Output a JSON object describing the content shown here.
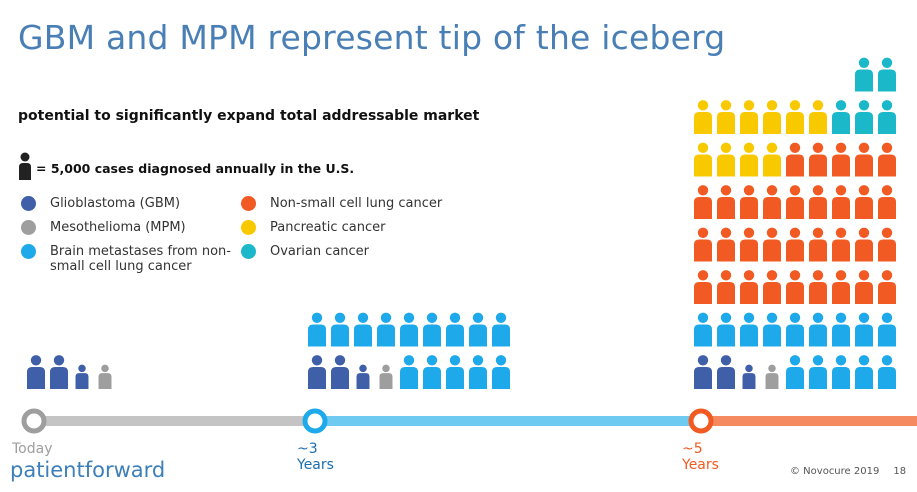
{
  "slide": {
    "title": "GBM and MPM represent tip of the iceberg",
    "subtitle": "potential to significantly expand total addressable market",
    "unit_label": "= 5,000 cases diagnosed annually in the U.S.",
    "brand": "patientforward",
    "copyright": "© Novocure 2019",
    "page_number": "18"
  },
  "legend": [
    {
      "label": "Glioblastoma (GBM)",
      "color": "#3f5fa8"
    },
    {
      "label": "Mesothelioma (MPM)",
      "color": "#9e9e9e"
    },
    {
      "label": "Brain metastases from non-small cell lung cancer",
      "color": "#1ea9ea"
    },
    {
      "label": "Non-small cell lung cancer",
      "color": "#f15a22"
    },
    {
      "label": "Pancreatic cancer",
      "color": "#f9c900"
    },
    {
      "label": "Ovarian cancer",
      "color": "#1bb8c9"
    }
  ],
  "timeline": [
    {
      "label": "Today",
      "sublabel": "",
      "color": "#9e9e9e"
    },
    {
      "label": "~3",
      "sublabel": "Years",
      "color": "#1ea9ea"
    },
    {
      "label": "~5",
      "sublabel": "Years",
      "color": "#f15a22"
    }
  ],
  "groups": [
    {
      "milestone": "Today",
      "rows": [
        [
          "gbm",
          "gbm",
          "gbm-small",
          "mpm"
        ]
      ]
    },
    {
      "milestone": "~3 Years",
      "rows": [
        [
          "bm",
          "bm",
          "bm",
          "bm",
          "bm",
          "bm",
          "bm",
          "bm",
          "bm"
        ],
        [
          "gbm",
          "gbm",
          "gbm-small",
          "mpm",
          "bm",
          "bm",
          "bm",
          "bm",
          "bm"
        ]
      ]
    },
    {
      "milestone": "~5 Years",
      "rows": [
        [
          "",
          "",
          "",
          "",
          "",
          "",
          "",
          "ov",
          "ov"
        ],
        [
          "pan",
          "pan",
          "pan",
          "pan",
          "pan",
          "pan",
          "ov",
          "ov",
          "ov"
        ],
        [
          "pan",
          "pan",
          "pan",
          "pan",
          "nsclc",
          "nsclc",
          "nsclc",
          "nsclc",
          "nsclc"
        ],
        [
          "nsclc",
          "nsclc",
          "nsclc",
          "nsclc",
          "nsclc",
          "nsclc",
          "nsclc",
          "nsclc",
          "nsclc"
        ],
        [
          "nsclc",
          "nsclc",
          "nsclc",
          "nsclc",
          "nsclc",
          "nsclc",
          "nsclc",
          "nsclc",
          "nsclc"
        ],
        [
          "nsclc",
          "nsclc",
          "nsclc",
          "nsclc",
          "nsclc",
          "nsclc",
          "nsclc",
          "nsclc",
          "nsclc"
        ],
        [
          "bm",
          "bm",
          "bm",
          "bm",
          "bm",
          "bm",
          "bm",
          "bm",
          "bm"
        ],
        [
          "gbm",
          "gbm",
          "gbm-small",
          "mpm",
          "bm",
          "bm",
          "bm",
          "bm",
          "bm"
        ]
      ]
    }
  ],
  "colors": {
    "gbm": "#3f5fa8",
    "mpm": "#9e9e9e",
    "bm": "#1ea9ea",
    "nsclc": "#f15a22",
    "pan": "#f9c900",
    "ov": "#1bb8c9",
    "unit": "#222222",
    "track_gray": "#c4c4c4",
    "track_blue": "#6fcaf2",
    "track_orange": "#f5895f"
  }
}
